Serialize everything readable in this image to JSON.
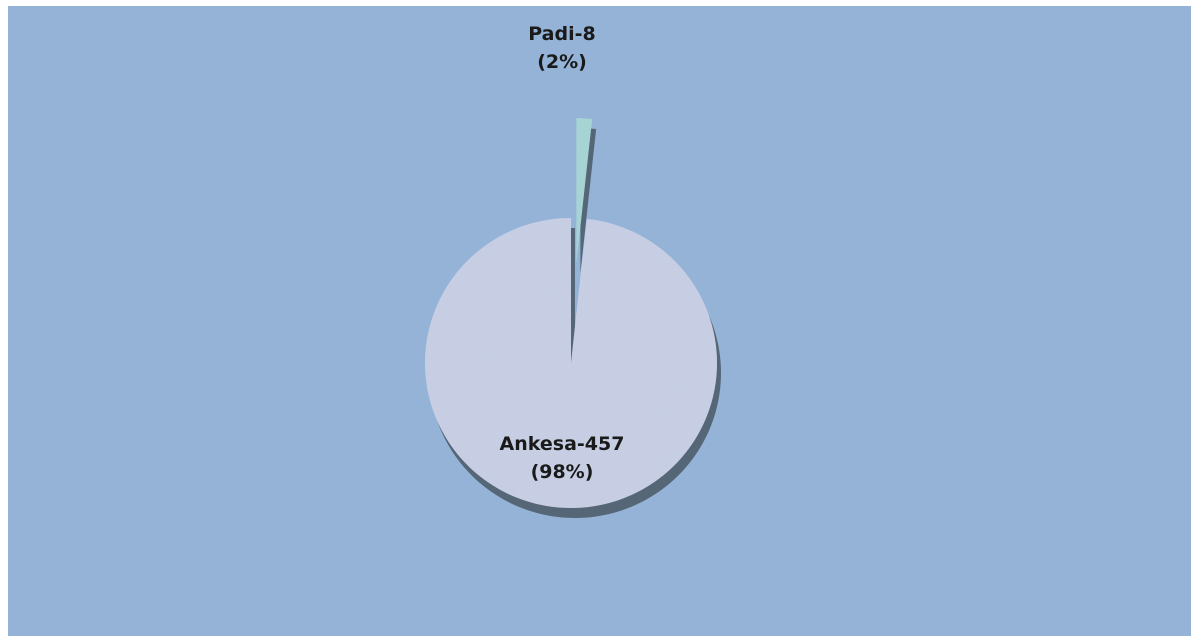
{
  "chart_data": {
    "type": "pie",
    "title": "",
    "style": "3d-exploded",
    "slices": [
      {
        "category": "Ankesa",
        "value": 457,
        "percent": 98,
        "label_name": "Ankesa-457",
        "label_pct": "(98%)",
        "color": "#c9d3e6"
      },
      {
        "category": "Padi",
        "value": 8,
        "percent": 2,
        "label_name": "Padi-8",
        "label_pct": "(2%)",
        "color": "#a8d9d6"
      }
    ],
    "colors": {
      "plot_background": "#95b3d7",
      "slice_side": "#556677"
    }
  }
}
